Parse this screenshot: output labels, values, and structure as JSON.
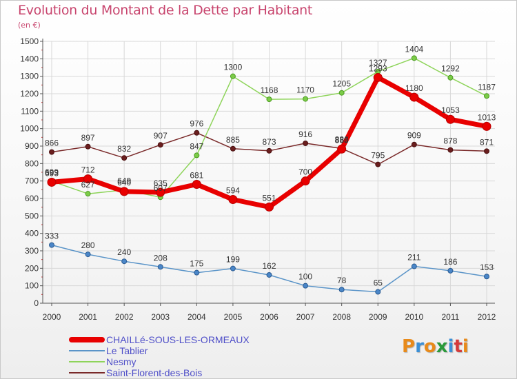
{
  "header": {
    "title": "Evolution du Montant de la Dette par Habitant",
    "subtitle": "(en €)"
  },
  "logo": {
    "text": "Proxiti",
    "letters": [
      "P",
      "r",
      "o",
      "x",
      "i",
      "t",
      "i"
    ],
    "colors": [
      "#e88a1a",
      "#3a8fd6",
      "#e88a1a",
      "#2a9a3a",
      "#3a8fd6",
      "#d43a3a",
      "#e88a1a"
    ]
  },
  "chart_data": {
    "type": "line",
    "title": "Evolution du Montant de la Dette par Habitant",
    "subtitle": "(en €)",
    "xlabel": "",
    "ylabel": "",
    "ylim": [
      0,
      1500
    ],
    "ytick_step": 100,
    "yticks": [
      "0",
      "100",
      "200",
      "300",
      "400",
      "500",
      "600",
      "700",
      "800",
      "900",
      "1000",
      "1100",
      "1200",
      "1300",
      "1400",
      "1500"
    ],
    "grid": true,
    "legend_position": "bottom-left",
    "x": [
      "2000",
      "2001",
      "2002",
      "2003",
      "2004",
      "2005",
      "2006",
      "2007",
      "2008",
      "2009",
      "2010",
      "2011",
      "2012"
    ],
    "series": [
      {
        "name": "Saint-Florent-des-Bois",
        "color": "#7a2a2a",
        "values": [
          866,
          897,
          832,
          907,
          976,
          885,
          873,
          916,
          886,
          795,
          909,
          878,
          871
        ]
      },
      {
        "name": "Le Tablier",
        "color": "#5a94c8",
        "values": [
          333,
          280,
          240,
          208,
          175,
          199,
          162,
          100,
          78,
          65,
          211,
          186,
          153
        ]
      },
      {
        "name": "Nesmy",
        "color": "#8ed45a",
        "values": [
          699,
          627,
          649,
          607,
          847,
          1300,
          1168,
          1170,
          1205,
          1327,
          1404,
          1292,
          1187
        ]
      },
      {
        "name": "CHAILLé-SOUS-LES-ORMEAUX",
        "color": "#e80000",
        "values": [
          693,
          712,
          640,
          635,
          681,
          594,
          551,
          700,
          883,
          1293,
          1180,
          1053,
          1013
        ]
      }
    ],
    "legend": [
      {
        "name": "CHAILLé-SOUS-LES-ORMEAUX",
        "color": "#e80000"
      },
      {
        "name": "Le Tablier",
        "color": "#5a94c8"
      },
      {
        "name": "Nesmy",
        "color": "#8ed45a"
      },
      {
        "name": "Saint-Florent-des-Bois",
        "color": "#7a2a2a"
      }
    ]
  }
}
